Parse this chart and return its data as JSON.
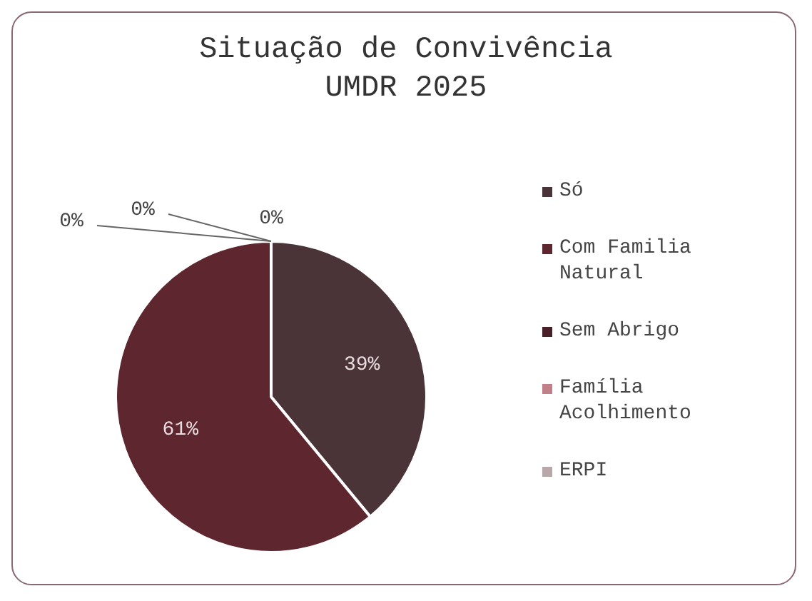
{
  "chart_data": {
    "type": "pie",
    "title": "Situação de Convivência\nUMDR 2025",
    "categories": [
      "Só",
      "Com Familia Natural",
      "Sem Abrigo",
      "Família Acolhimento",
      "ERPI"
    ],
    "values": [
      39,
      61,
      0,
      0,
      0
    ],
    "value_labels": [
      "39%",
      "61%",
      "0%",
      "0%",
      "0%"
    ],
    "colors": [
      "#4a3438",
      "#5e262e",
      "#4a2028",
      "#c08088",
      "#b8a8ac"
    ],
    "legend": "right"
  }
}
